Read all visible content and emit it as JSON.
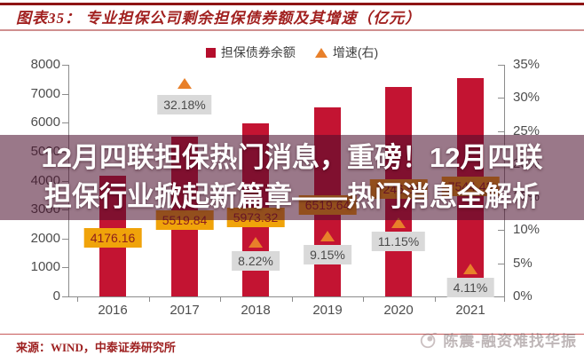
{
  "header": {
    "title": "图表35：  专业担保公司剩余担保债券额及其增速（亿元）"
  },
  "overlay": {
    "line1": "12月四联担保热门消息，重磅！12月四联",
    "line2": "担保行业掀起新篇章——热门消息全解析"
  },
  "footer": {
    "source": "来源：WIND，中泰证券研究所",
    "watermark": "陈震-融资难找华振"
  },
  "chart_data": {
    "type": "bar",
    "title": "专业担保公司剩余担保债券额及其增速（亿元）",
    "categories": [
      "2016",
      "2017",
      "2018",
      "2019",
      "2020",
      "2021"
    ],
    "series": [
      {
        "name": "担保债券余额",
        "type": "bar",
        "axis": "left",
        "color": "#c31432",
        "values": [
          4176.16,
          5519.84,
          5973.32,
          6519.64,
          7246.58,
          7544.42
        ],
        "labels": [
          "4176.16",
          "5519.84",
          "5973.32",
          "6519.64",
          "7246.58",
          "7544.42"
        ]
      },
      {
        "name": "增速(右)",
        "type": "point",
        "marker": "triangle",
        "axis": "right",
        "color": "#e8802a",
        "values": [
          null,
          32.18,
          8.22,
          9.15,
          11.15,
          4.11
        ],
        "labels": [
          null,
          "32.18%",
          "8.22%",
          "9.15%",
          "11.15%",
          "4.11%"
        ]
      }
    ],
    "left_axis": {
      "min": 0,
      "max": 8000,
      "step": 1000,
      "tick_labels": [
        "0",
        "1000",
        "2000",
        "3000",
        "4000",
        "5000",
        "6000",
        "7000",
        "8000"
      ]
    },
    "right_axis": {
      "min": 0,
      "max": 35,
      "step": 5,
      "tick_labels": [
        "0%",
        "5%",
        "10%",
        "15%",
        "20%",
        "25%",
        "30%",
        "35%"
      ]
    },
    "legend": [
      {
        "label": "担保债券余额",
        "marker": "square",
        "color": "#b50e2c"
      },
      {
        "label": "增速(右)",
        "marker": "triangle",
        "color": "#e8802a"
      }
    ],
    "legend_position": "top-center",
    "grid": false
  }
}
